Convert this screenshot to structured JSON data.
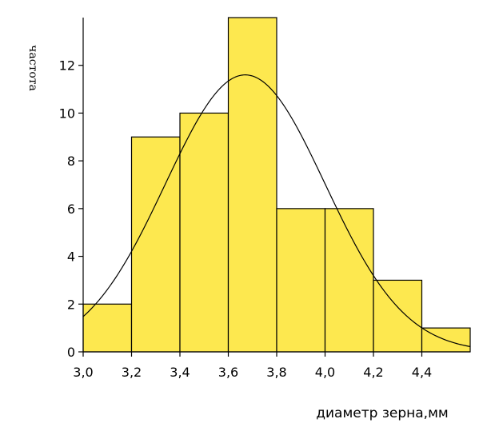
{
  "chart_data": {
    "type": "bar",
    "subtype": "histogram",
    "xlabel": "диаметр зерна,мм",
    "ylabel": "частота",
    "bins": [
      {
        "start": 3.0,
        "end": 3.2,
        "count": 2
      },
      {
        "start": 3.2,
        "end": 3.4,
        "count": 9
      },
      {
        "start": 3.4,
        "end": 3.6,
        "count": 10
      },
      {
        "start": 3.6,
        "end": 3.8,
        "count": 14
      },
      {
        "start": 3.8,
        "end": 4.0,
        "count": 6
      },
      {
        "start": 4.0,
        "end": 4.2,
        "count": 6
      },
      {
        "start": 4.2,
        "end": 4.4,
        "count": 3
      },
      {
        "start": 4.4,
        "end": 4.6,
        "count": 1
      }
    ],
    "xlim": [
      3.0,
      4.6
    ],
    "ylim": [
      0,
      14
    ],
    "xticks": [
      "3,0",
      "3,2",
      "3,4",
      "3,6",
      "3,8",
      "4,0",
      "4,2",
      "4,4"
    ],
    "yticks": [
      "0",
      "2",
      "4",
      "6",
      "8",
      "10",
      "12"
    ],
    "xtick_values": [
      3.0,
      3.2,
      3.4,
      3.6,
      3.8,
      4.0,
      4.2,
      4.4
    ],
    "ytick_values": [
      0,
      2,
      4,
      6,
      8,
      10,
      12
    ],
    "normal_curve": {
      "mean": 3.67,
      "std": 0.33,
      "peak": 11.6
    },
    "grid": false,
    "bar_color": "#fde84f",
    "edge_color": "#000000",
    "curve_color": "#000000"
  }
}
